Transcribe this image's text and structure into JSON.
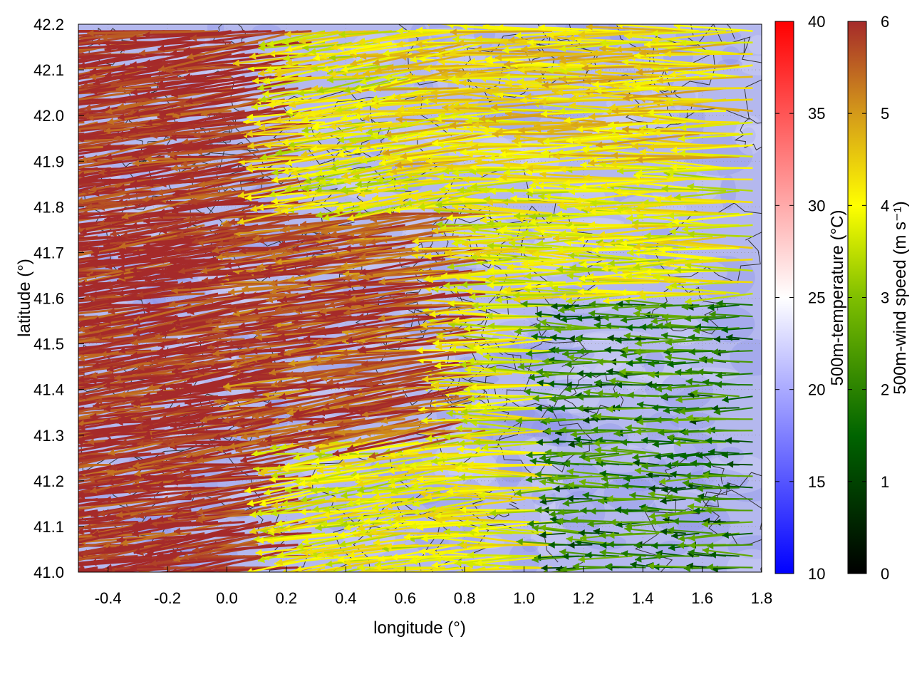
{
  "chart_data": {
    "type": "vector-field",
    "xlabel": "longitude (°)",
    "ylabel": "latitude (°)",
    "xlim": [
      -0.5,
      1.8
    ],
    "ylim": [
      41.0,
      42.2
    ],
    "xticks": [
      -0.4,
      -0.2,
      0.0,
      0.2,
      0.4,
      0.6,
      0.8,
      1.0,
      1.2,
      1.4,
      1.6,
      1.8
    ],
    "xtick_labels": [
      "-0.4",
      "-0.2",
      "0.0",
      "0.2",
      "0.4",
      "0.6",
      "0.8",
      "1.0",
      "1.2",
      "1.4",
      "1.6",
      "1.8"
    ],
    "yticks": [
      41.0,
      41.1,
      41.2,
      41.3,
      41.4,
      41.5,
      41.6,
      41.7,
      41.8,
      41.9,
      42.0,
      42.1,
      42.2
    ],
    "ytick_labels": [
      "41.0",
      "41.1",
      "41.2",
      "41.3",
      "41.4",
      "41.5",
      "41.6",
      "41.7",
      "41.8",
      "41.9",
      "42.0",
      "42.1",
      "42.2"
    ],
    "grid": true,
    "background_field": {
      "name": "500m-temperature (°C)",
      "range": [
        10,
        40
      ],
      "ticks": [
        "10",
        "15",
        "20",
        "25",
        "30",
        "35",
        "40"
      ],
      "colors": [
        "#0000ff",
        "#ffffff",
        "#ff0000"
      ],
      "typical_value": 20
    },
    "vector_field": {
      "name": "500m-wind speed (m s⁻¹)",
      "range": [
        0,
        6
      ],
      "ticks": [
        "0",
        "1",
        "2",
        "3",
        "4",
        "5",
        "6"
      ],
      "colors": [
        "#000000",
        "#006400",
        "#7fbf00",
        "#ffff00",
        "#d49a1a",
        "#a52a2a"
      ],
      "predominant_direction": "westward",
      "speed_regions": [
        {
          "lon": [
            -0.5,
            0.3
          ],
          "lat": [
            41.0,
            42.2
          ],
          "speed": 6
        },
        {
          "lon": [
            0.3,
            0.9
          ],
          "lat": [
            41.3,
            41.8
          ],
          "speed": 5.5
        },
        {
          "lon": [
            0.7,
            1.8
          ],
          "lat": [
            41.9,
            42.2
          ],
          "speed": 4
        },
        {
          "lon": [
            0.4,
            1.2
          ],
          "lat": [
            41.0,
            41.3
          ],
          "speed": 3.5
        },
        {
          "lon": [
            1.1,
            1.8
          ],
          "lat": [
            41.0,
            41.6
          ],
          "speed": 1.5
        }
      ]
    },
    "contours": {
      "color": "#333333",
      "description": "orography"
    }
  }
}
